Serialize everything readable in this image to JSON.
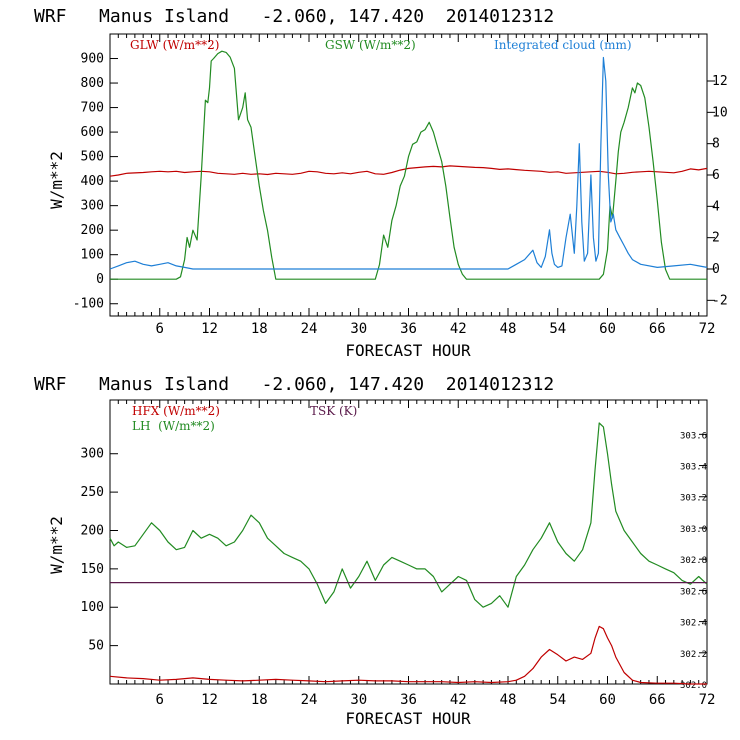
{
  "chart_data": [
    {
      "type": "line",
      "title": "WRF   Manus Island   -2.060, 147.420  2014012312",
      "xlabel": "FORECAST HOUR",
      "ylabel": "W/m**2",
      "x_ticks": [
        6,
        12,
        18,
        24,
        30,
        36,
        42,
        48,
        54,
        60,
        66,
        72
      ],
      "xlim": [
        0,
        72
      ],
      "ylim": [
        -150,
        1000
      ],
      "y_ticks": [
        -100,
        0,
        100,
        200,
        300,
        400,
        500,
        600,
        700,
        800,
        900
      ],
      "y2lim": [
        -3,
        15
      ],
      "y2_ticks": [
        -2,
        0,
        2,
        4,
        6,
        8,
        10,
        12
      ],
      "legend": [
        {
          "label": "GLW (W/m**2)",
          "color": "#c00000"
        },
        {
          "label": "GSW (W/m**2)",
          "color": "#228b22"
        },
        {
          "label": "Integrated cloud (mm)",
          "color": "#1e7fd6"
        }
      ],
      "series": [
        {
          "name": "GLW (W/m**2)",
          "color": "#c00000",
          "axis": "left",
          "x": [
            0,
            1,
            2,
            4,
            5,
            6,
            7,
            8,
            9,
            10,
            11,
            12,
            13,
            14,
            15,
            16,
            17,
            18,
            19,
            20,
            21,
            22,
            23,
            24,
            25,
            26,
            27,
            28,
            29,
            30,
            31,
            32,
            33,
            34,
            35,
            36,
            37,
            38,
            39,
            40,
            41,
            42,
            43,
            44,
            45,
            46,
            47,
            48,
            49,
            50,
            51,
            52,
            53,
            54,
            55,
            56,
            57,
            58,
            59,
            60,
            61,
            62,
            63,
            64,
            65,
            66,
            67,
            68,
            69,
            70,
            71,
            72
          ],
          "y": [
            420,
            425,
            432,
            435,
            438,
            440,
            438,
            440,
            435,
            438,
            440,
            438,
            432,
            430,
            428,
            432,
            428,
            430,
            427,
            432,
            430,
            428,
            432,
            440,
            438,
            432,
            430,
            434,
            430,
            436,
            440,
            430,
            428,
            435,
            445,
            452,
            455,
            458,
            460,
            458,
            462,
            460,
            458,
            456,
            455,
            452,
            448,
            450,
            447,
            444,
            442,
            440,
            436,
            438,
            432,
            434,
            436,
            438,
            440,
            436,
            430,
            432,
            436,
            438,
            440,
            438,
            436,
            434,
            440,
            450,
            446,
            452
          ]
        },
        {
          "name": "GSW (W/m**2)",
          "color": "#228b22",
          "axis": "left",
          "x": [
            0,
            1,
            2,
            3,
            4,
            5,
            6,
            7,
            8,
            8.5,
            9,
            9.3,
            9.6,
            10,
            10.5,
            11,
            11.5,
            11.8,
            12,
            12.2,
            12.5,
            13,
            13.5,
            14,
            14.5,
            15,
            15.5,
            16,
            16.3,
            16.6,
            17,
            17.5,
            18,
            18.5,
            19,
            19.5,
            20,
            20.5,
            21,
            22,
            24,
            26,
            28,
            30,
            32,
            32.5,
            33,
            33.5,
            34,
            34.5,
            35,
            35.5,
            36,
            36.5,
            37,
            37.5,
            38,
            38.5,
            39,
            39.5,
            40,
            40.5,
            41,
            41.5,
            42,
            42.5,
            43,
            43.5,
            44,
            45,
            50,
            53,
            54,
            55,
            56,
            57,
            58,
            58.5,
            59,
            59.5,
            60,
            60.3,
            60.6,
            61,
            61.3,
            61.6,
            62,
            62.5,
            63,
            63.3,
            63.6,
            64,
            64.5,
            65,
            65.5,
            66,
            66.5,
            67,
            67.5,
            68,
            69,
            72
          ],
          "y": [
            0,
            0,
            0,
            0,
            0,
            0,
            0,
            0,
            0,
            10,
            80,
            170,
            130,
            200,
            160,
            420,
            730,
            720,
            780,
            890,
            900,
            920,
            930,
            925,
            905,
            860,
            650,
            700,
            760,
            650,
            620,
            500,
            380,
            280,
            200,
            90,
            0,
            0,
            0,
            0,
            0,
            0,
            0,
            0,
            0,
            60,
            180,
            130,
            240,
            300,
            380,
            420,
            500,
            550,
            560,
            600,
            610,
            640,
            600,
            540,
            480,
            380,
            250,
            130,
            60,
            20,
            0,
            0,
            0,
            0,
            0,
            0,
            0,
            0,
            0,
            0,
            0,
            0,
            0,
            20,
            120,
            300,
            250,
            400,
            520,
            600,
            640,
            700,
            780,
            760,
            800,
            790,
            740,
            620,
            480,
            320,
            150,
            40,
            0,
            0,
            0,
            0
          ]
        },
        {
          "name": "Integrated cloud (mm)",
          "color": "#1e7fd6",
          "axis": "right",
          "x": [
            0,
            1,
            2,
            3,
            4,
            5,
            6,
            7,
            8,
            9,
            10,
            12,
            14,
            16,
            18,
            20,
            22,
            24,
            26,
            28,
            30,
            32,
            34,
            36,
            38,
            40,
            42,
            44,
            46,
            48,
            49,
            50,
            51,
            51.5,
            52,
            52.5,
            53,
            53.3,
            53.6,
            54,
            54.5,
            55,
            55.5,
            56,
            56.3,
            56.6,
            56.9,
            57.2,
            57.6,
            58,
            58.3,
            58.6,
            58.9,
            59.2,
            59.5,
            59.8,
            60.1,
            60.4,
            60.7,
            61,
            61.5,
            62,
            62.5,
            63,
            64,
            66,
            68,
            70,
            71,
            72
          ],
          "y": [
            0,
            0.2,
            0.4,
            0.5,
            0.3,
            0.2,
            0.3,
            0.4,
            0.2,
            0.1,
            0,
            0,
            0,
            0,
            0,
            0,
            0,
            0,
            0,
            0,
            0,
            0,
            0,
            0,
            0,
            0,
            0,
            0,
            0,
            0,
            0.3,
            0.6,
            1.2,
            0.4,
            0.1,
            0.8,
            2.5,
            1.0,
            0.3,
            0.1,
            0.2,
            2.0,
            3.5,
            1.0,
            4.0,
            8.0,
            3.0,
            0.5,
            1.0,
            6.0,
            2.0,
            0.5,
            1.0,
            8.0,
            13.5,
            12.0,
            6.0,
            3.0,
            3.5,
            2.5,
            2.0,
            1.5,
            1.0,
            0.6,
            0.3,
            0.1,
            0.2,
            0.3,
            0.2,
            0.1
          ]
        }
      ]
    },
    {
      "type": "line",
      "title": "WRF   Manus Island   -2.060, 147.420  2014012312",
      "xlabel": "FORECAST HOUR",
      "ylabel": "W/m**2",
      "x_ticks": [
        6,
        12,
        18,
        24,
        30,
        36,
        42,
        48,
        54,
        60,
        66,
        72
      ],
      "xlim": [
        0,
        72
      ],
      "ylim": [
        0,
        370
      ],
      "y_ticks": [
        50,
        100,
        150,
        200,
        250,
        300
      ],
      "y2lim": [
        302.0,
        303.82
      ],
      "y2_ticks": [
        "302.0",
        "302.2",
        "302.4",
        "302.6",
        "302.8",
        "303.0",
        "303.2",
        "303.4",
        "303.6"
      ],
      "legend": [
        {
          "label": "HFX (W/m**2)",
          "color": "#c00000"
        },
        {
          "label": "LH  (W/m**2)",
          "color": "#228b22"
        },
        {
          "label": "TSK (K)",
          "color": "#5a1a4a"
        }
      ],
      "series": [
        {
          "name": "HFX (W/m**2)",
          "color": "#c00000",
          "axis": "left",
          "x": [
            0,
            2,
            4,
            6,
            8,
            10,
            12,
            14,
            16,
            18,
            20,
            22,
            24,
            26,
            28,
            30,
            32,
            34,
            36,
            38,
            40,
            42,
            44,
            46,
            48,
            49,
            50,
            51,
            52,
            53,
            54,
            55,
            56,
            57,
            58,
            58.5,
            59,
            59.5,
            60,
            60.5,
            61,
            62,
            63,
            64,
            66,
            68,
            70,
            72
          ],
          "y": [
            10,
            8,
            7,
            5,
            6,
            8,
            6,
            5,
            4,
            5,
            6,
            5,
            4,
            3,
            4,
            5,
            4,
            4,
            3,
            3,
            3,
            2,
            3,
            2,
            3,
            5,
            10,
            20,
            35,
            45,
            38,
            30,
            35,
            32,
            40,
            60,
            75,
            72,
            60,
            50,
            35,
            15,
            5,
            2,
            1,
            1,
            0,
            0
          ]
        },
        {
          "name": "LH  (W/m**2)",
          "color": "#228b22",
          "axis": "left",
          "x": [
            0,
            0.5,
            1,
            2,
            3,
            4,
            5,
            6,
            7,
            8,
            9,
            10,
            11,
            12,
            13,
            14,
            15,
            16,
            17,
            18,
            19,
            20,
            21,
            22,
            23,
            24,
            25,
            26,
            27,
            28,
            29,
            30,
            31,
            32,
            33,
            34,
            35,
            36,
            37,
            38,
            39,
            40,
            41,
            42,
            43,
            44,
            45,
            46,
            47,
            48,
            49,
            50,
            51,
            52,
            53,
            54,
            55,
            56,
            57,
            58,
            58.5,
            59,
            59.5,
            60,
            60.5,
            61,
            62,
            63,
            64,
            65,
            66,
            67,
            68,
            69,
            70,
            71,
            72
          ],
          "y": [
            190,
            180,
            185,
            178,
            180,
            195,
            210,
            200,
            185,
            175,
            178,
            200,
            190,
            195,
            190,
            180,
            185,
            200,
            220,
            210,
            190,
            180,
            170,
            165,
            160,
            150,
            130,
            105,
            120,
            150,
            125,
            140,
            160,
            135,
            155,
            165,
            160,
            155,
            150,
            150,
            140,
            120,
            130,
            140,
            135,
            110,
            100,
            105,
            115,
            100,
            140,
            155,
            175,
            190,
            210,
            185,
            170,
            160,
            175,
            210,
            280,
            340,
            335,
            300,
            260,
            225,
            200,
            185,
            170,
            160,
            155,
            150,
            145,
            135,
            130,
            140,
            130
          ]
        },
        {
          "name": "TSK (K)",
          "color": "#5a1a4a",
          "axis": "right",
          "x": [
            0,
            72
          ],
          "y": [
            302.65,
            302.65
          ]
        }
      ]
    }
  ]
}
